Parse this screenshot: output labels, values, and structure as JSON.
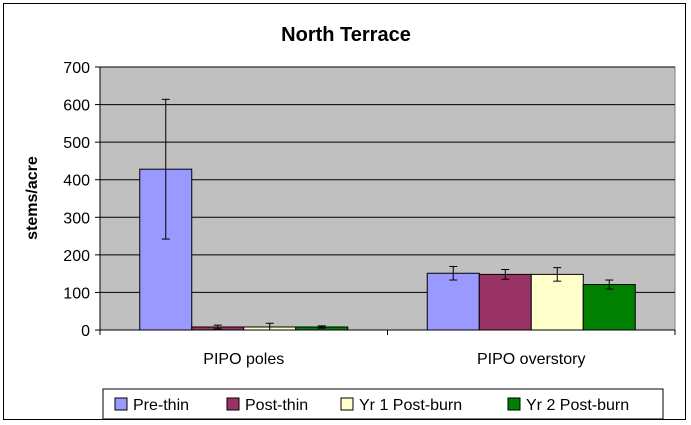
{
  "chart_data": {
    "type": "bar",
    "title": "North Terrace",
    "ylabel": "stems/acre",
    "xlabel": "",
    "ylim": [
      0,
      700
    ],
    "yticks": [
      0,
      100,
      200,
      300,
      400,
      500,
      600,
      700
    ],
    "grid": true,
    "legend_position": "bottom",
    "categories": [
      "PIPO poles",
      "PIPO overstory"
    ],
    "series": [
      {
        "name": "Pre-thin",
        "color": "#9999ff",
        "values": [
          428,
          151
        ],
        "error": [
          186,
          18
        ]
      },
      {
        "name": "Post-thin",
        "color": "#993366",
        "values": [
          8,
          148
        ],
        "error": [
          5,
          13
        ]
      },
      {
        "name": "Yr 1 Post-burn",
        "color": "#ffffcc",
        "values": [
          8,
          148
        ],
        "error": [
          10,
          18
        ]
      },
      {
        "name": "Yr 2 Post-burn",
        "color": "#008000",
        "values": [
          8,
          121
        ],
        "error": [
          3,
          12
        ]
      }
    ],
    "plot_background": "#c0c0c0"
  }
}
